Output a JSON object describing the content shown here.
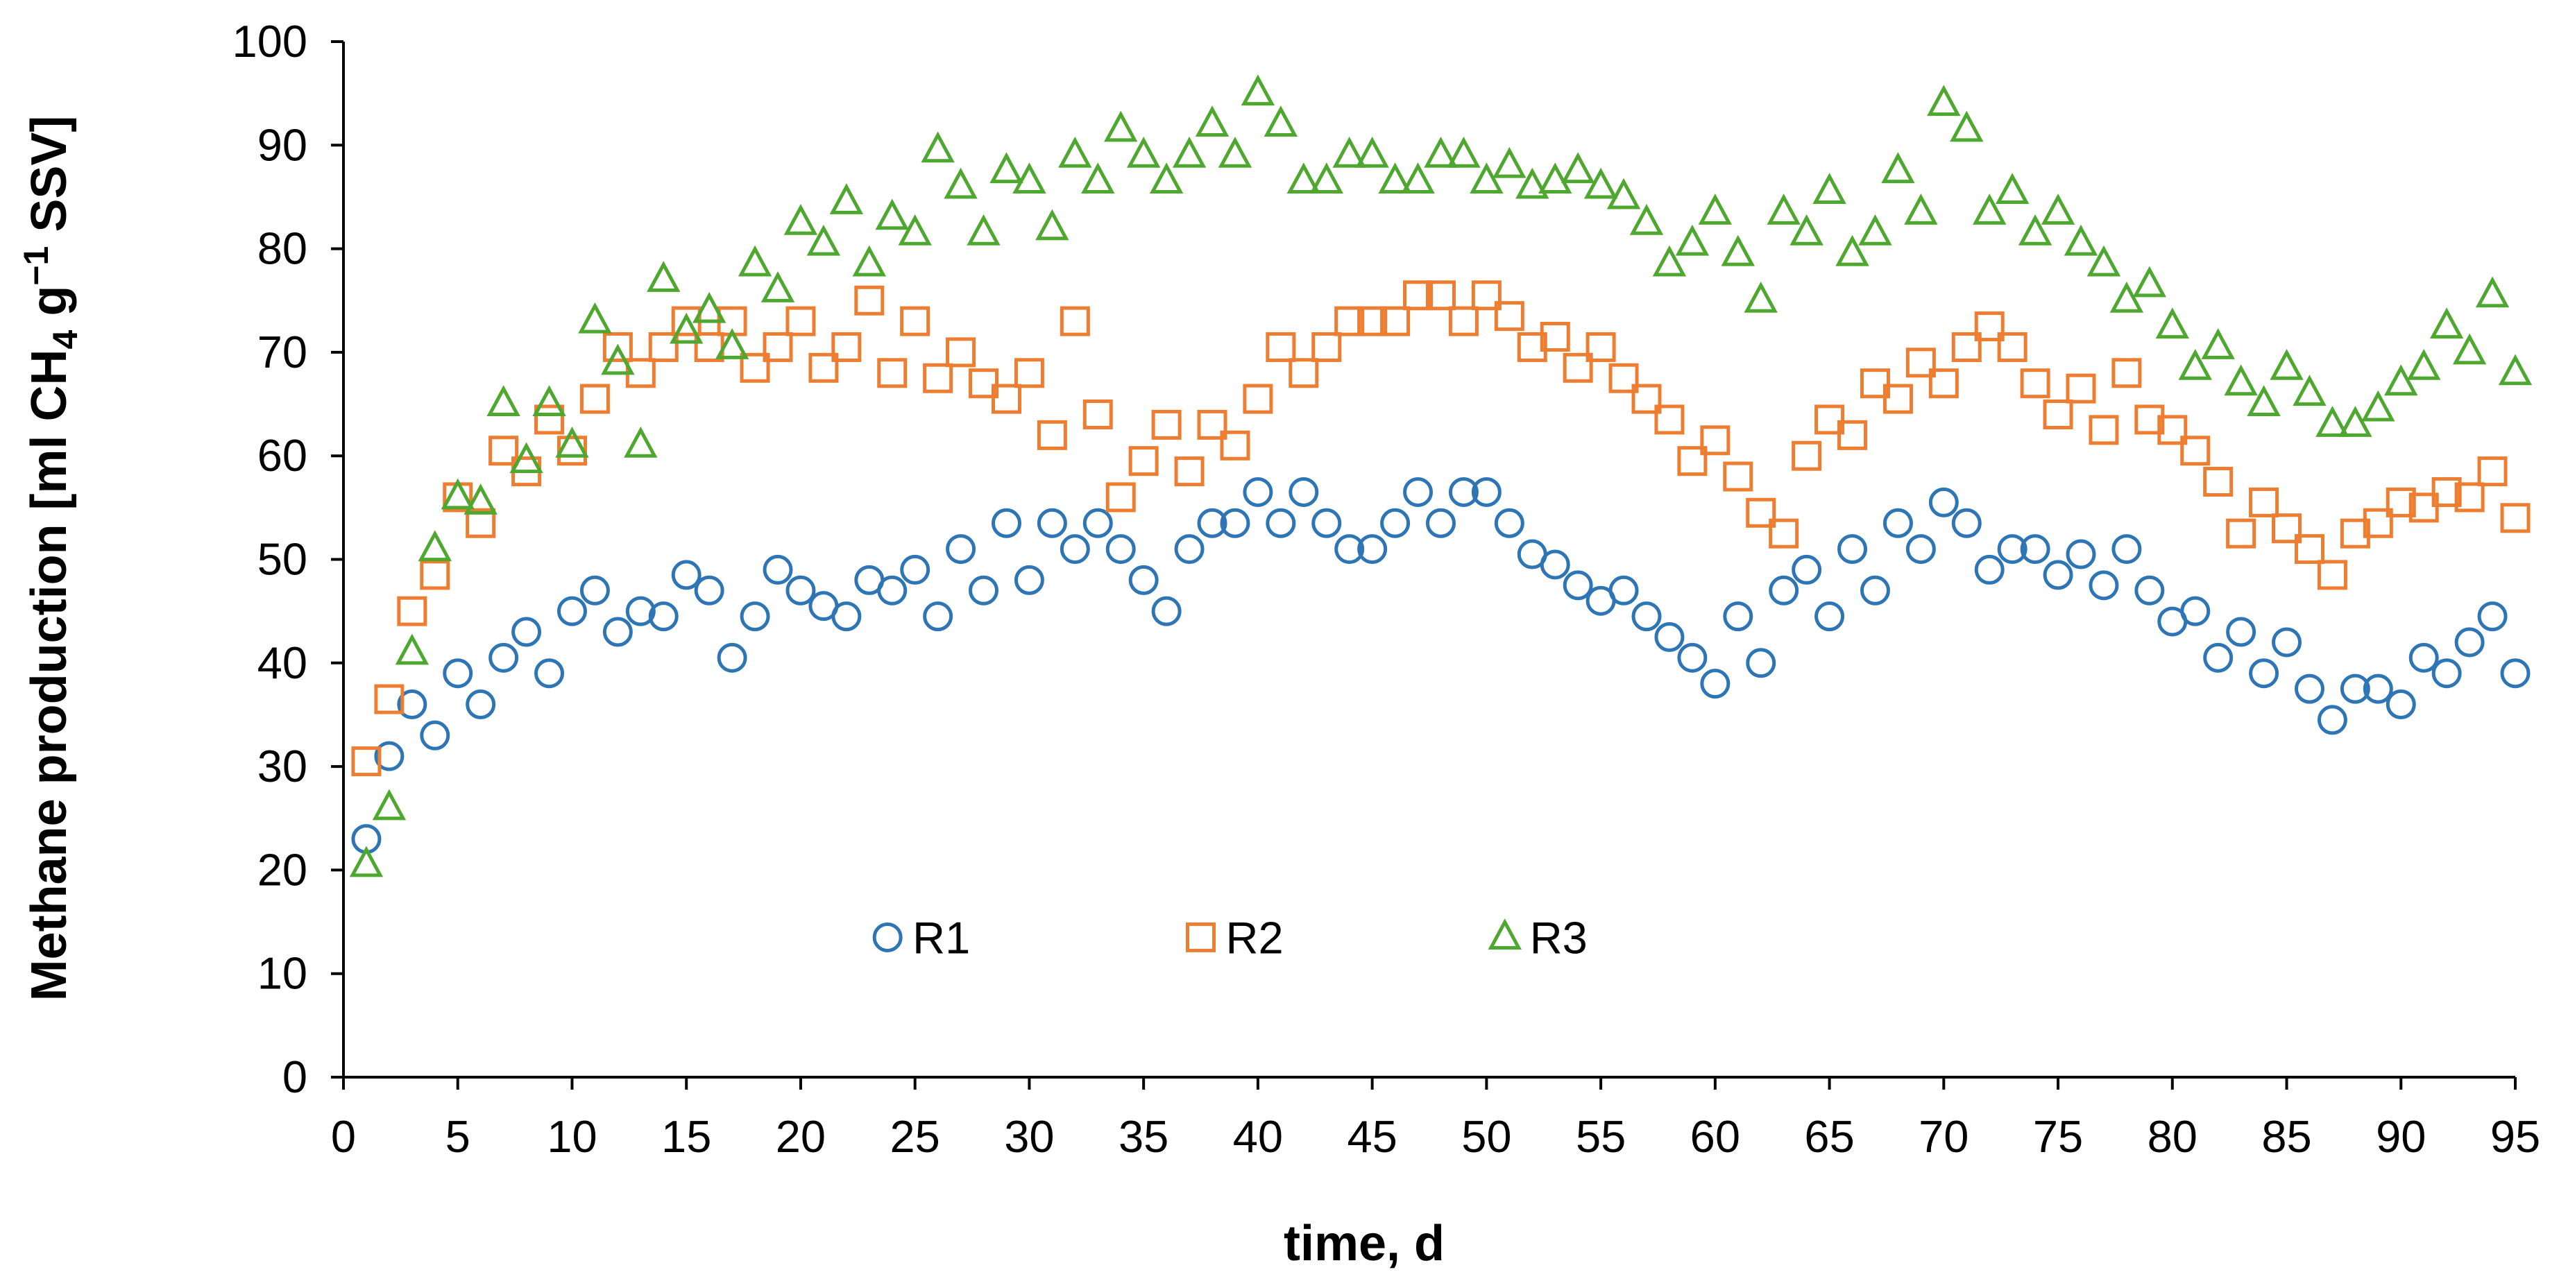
{
  "chart_data": {
    "type": "scatter",
    "xlabel": "time, d",
    "ylabel": {
      "prefix": "Methane production [ml CH",
      "sub": "4",
      "mid": " g",
      "sup": "−1",
      "suffix": " SSV]"
    },
    "xlim": [
      0,
      95
    ],
    "ylim": [
      0,
      100
    ],
    "xticks": [
      0,
      5,
      10,
      15,
      20,
      25,
      30,
      35,
      40,
      45,
      50,
      55,
      60,
      65,
      70,
      75,
      80,
      85,
      90,
      95
    ],
    "yticks": [
      0,
      10,
      20,
      30,
      40,
      50,
      60,
      70,
      80,
      90,
      100
    ],
    "grid": false,
    "legend_position": "bottom-center",
    "series": [
      {
        "name": "R1",
        "marker": "circle",
        "color": "#2E75B6",
        "x": [
          1,
          2,
          3,
          4,
          5,
          6,
          7,
          8,
          9,
          10,
          11,
          12,
          13,
          14,
          15,
          16,
          17,
          18,
          19,
          20,
          21,
          22,
          23,
          24,
          25,
          26,
          27,
          28,
          29,
          30,
          31,
          32,
          33,
          34,
          35,
          36,
          37,
          38,
          39,
          40,
          41,
          42,
          43,
          44,
          45,
          46,
          47,
          48,
          49,
          50,
          51,
          52,
          53,
          54,
          55,
          56,
          57,
          58,
          59,
          60,
          61,
          62,
          63,
          64,
          65,
          66,
          67,
          68,
          69,
          70,
          71,
          72,
          73,
          74,
          75,
          76,
          77,
          78,
          79,
          80,
          81,
          82,
          83,
          84,
          85,
          86,
          87,
          88,
          89,
          90,
          91,
          92,
          93,
          94,
          95
        ],
        "y": [
          23,
          31,
          36,
          33,
          39,
          36,
          40.5,
          43,
          39,
          45,
          47,
          43,
          45,
          44.5,
          48.5,
          47,
          40.5,
          44.5,
          49,
          47,
          45.5,
          44.5,
          48,
          47,
          49,
          44.5,
          51,
          47,
          53.5,
          48,
          53.5,
          51,
          53.5,
          51,
          48,
          45,
          51,
          53.5,
          53.5,
          56.5,
          53.5,
          56.5,
          53.5,
          51,
          51,
          53.5,
          56.5,
          53.5,
          56.5,
          56.5,
          53.5,
          50.5,
          49.5,
          47.5,
          46,
          47,
          44.5,
          42.5,
          40.5,
          38,
          44.5,
          40,
          47,
          49,
          44.5,
          51,
          47,
          53.5,
          51,
          55.5,
          53.5,
          49,
          51,
          51,
          48.5,
          50.5,
          47.5,
          51,
          47,
          44,
          45,
          40.5,
          43,
          39,
          42,
          37.5,
          34.5,
          37.5,
          37.5,
          36,
          40.5,
          39,
          42,
          44.5,
          39
        ]
      },
      {
        "name": "R2",
        "marker": "square",
        "color": "#ED7D31",
        "x": [
          1,
          2,
          3,
          4,
          5,
          6,
          7,
          8,
          9,
          10,
          11,
          12,
          13,
          14,
          15,
          16,
          17,
          18,
          19,
          20,
          21,
          22,
          23,
          24,
          25,
          26,
          27,
          28,
          29,
          30,
          31,
          32,
          33,
          34,
          35,
          36,
          37,
          38,
          39,
          40,
          41,
          42,
          43,
          44,
          45,
          46,
          47,
          48,
          49,
          50,
          51,
          52,
          53,
          54,
          55,
          56,
          57,
          58,
          59,
          60,
          61,
          62,
          63,
          64,
          65,
          66,
          67,
          68,
          69,
          70,
          71,
          72,
          73,
          74,
          75,
          76,
          77,
          78,
          79,
          80,
          81,
          82,
          83,
          84,
          85,
          86,
          87,
          88,
          89,
          90,
          91,
          92,
          93,
          94,
          95
        ],
        "y": [
          30.5,
          36.5,
          45,
          48.5,
          56,
          53.5,
          60.5,
          58.5,
          63.5,
          60.5,
          65.5,
          70.5,
          68,
          70.5,
          73,
          70.5,
          73,
          68.5,
          70.5,
          73,
          68.5,
          70.5,
          75,
          68,
          73,
          67.5,
          70,
          67,
          65.5,
          68,
          62,
          73,
          64,
          56,
          59.5,
          63,
          58.5,
          63,
          61,
          65.5,
          70.5,
          68,
          70.5,
          73,
          73,
          73,
          75.5,
          75.5,
          73,
          75.5,
          73.5,
          70.5,
          71.5,
          68.5,
          70.5,
          67.5,
          65.5,
          63.5,
          59.5,
          61.5,
          58,
          54.5,
          52.5,
          60,
          63.5,
          62,
          67,
          65.5,
          69,
          67,
          70.5,
          72.5,
          70.5,
          67,
          64,
          66.5,
          62.5,
          68,
          63.5,
          62.5,
          60.5,
          57.5,
          52.5,
          55.5,
          53,
          51,
          48.5,
          52.5,
          53.5,
          55.5,
          55,
          56.5,
          56,
          58.5,
          54
        ]
      },
      {
        "name": "R3",
        "marker": "triangle",
        "color": "#4EA72E",
        "x": [
          1,
          2,
          3,
          4,
          5,
          6,
          7,
          8,
          9,
          10,
          11,
          12,
          13,
          14,
          15,
          16,
          17,
          18,
          19,
          20,
          21,
          22,
          23,
          24,
          25,
          26,
          27,
          28,
          29,
          30,
          31,
          32,
          33,
          34,
          35,
          36,
          37,
          38,
          39,
          40,
          41,
          42,
          43,
          44,
          45,
          46,
          47,
          48,
          49,
          50,
          51,
          52,
          53,
          54,
          55,
          56,
          57,
          58,
          59,
          60,
          61,
          62,
          63,
          64,
          65,
          66,
          67,
          68,
          69,
          70,
          71,
          72,
          73,
          74,
          75,
          76,
          77,
          78,
          79,
          80,
          81,
          82,
          83,
          84,
          85,
          86,
          87,
          88,
          89,
          90,
          91,
          92,
          93,
          94,
          95
        ],
        "y": [
          20.5,
          26,
          41,
          51,
          56,
          55.5,
          65,
          59.5,
          65,
          61,
          73,
          69,
          61,
          77,
          72,
          74,
          70.5,
          78.5,
          76,
          82.5,
          80.5,
          84.5,
          78.5,
          83,
          81.5,
          89.5,
          86,
          81.5,
          87.5,
          86.5,
          82,
          89,
          86.5,
          91.5,
          89,
          86.5,
          89,
          92,
          89,
          95,
          92,
          86.5,
          86.5,
          89,
          89,
          86.5,
          86.5,
          89,
          89,
          86.5,
          88,
          86,
          86.5,
          87.5,
          86,
          85,
          82.5,
          78.5,
          80.5,
          83.5,
          79.5,
          75,
          83.5,
          81.5,
          85.5,
          79.5,
          81.5,
          87.5,
          83.5,
          94,
          91.5,
          83.5,
          85.5,
          81.5,
          83.5,
          80.5,
          78.5,
          75,
          76.5,
          72.5,
          68.5,
          70.5,
          67,
          65,
          68.5,
          66,
          63,
          63,
          64.5,
          67,
          68.5,
          72.5,
          70,
          75.5,
          68
        ]
      }
    ]
  }
}
